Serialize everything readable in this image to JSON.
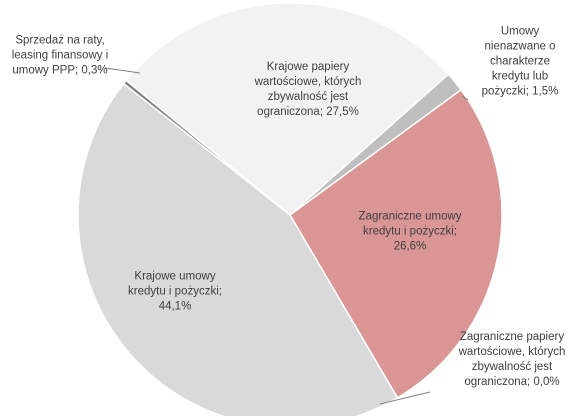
{
  "chart_data": {
    "type": "pie",
    "labels": [
      "Krajowe papiery wartościowe, których zbywalność jest ograniczona; 27,5%",
      "Umowy nienazwane o charakterze kredytu lub pożyczki; 1,5%",
      "Zagraniczne umowy kredytu i pożyczki; 26,6%",
      "Zagraniczne papiery wartościowe, których zbywalność jest ograniczona; 0,0%",
      "Krajowe umowy kredytu i pożyczki; 44,1%",
      "Sprzedaż na raty, leasing finansowy i umowy PPP; 0,3%"
    ],
    "values": [
      27.5,
      1.5,
      26.6,
      0.0,
      44.1,
      0.3
    ],
    "colors": [
      "#f2f2f2",
      "#bfbfbf",
      "#da9694",
      "#c0504d",
      "#d9d9d9",
      "#808080"
    ]
  }
}
